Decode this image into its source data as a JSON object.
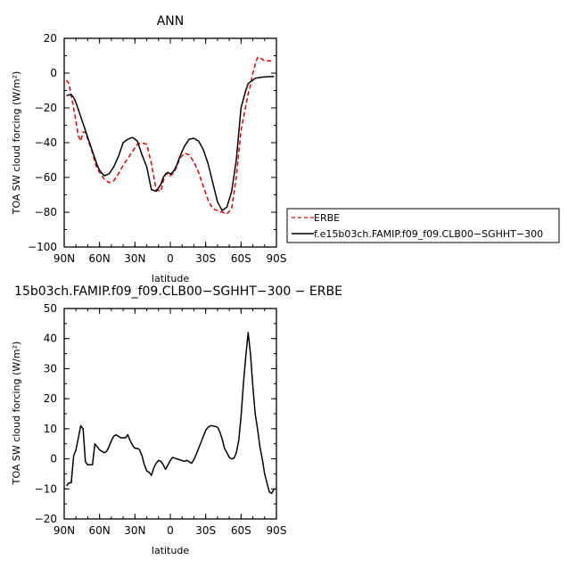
{
  "chart_data": [
    {
      "type": "line",
      "title": "ANN",
      "xlabel": "latitude",
      "ylabel": "TOA SW cloud forcing (W/m²)",
      "xlim": [
        90,
        -90
      ],
      "ylim": [
        -100,
        20
      ],
      "xticks": [
        90,
        60,
        30,
        0,
        -30,
        -60,
        -90
      ],
      "xtick_labels": [
        "90N",
        "60N",
        "30N",
        "0",
        "30S",
        "60S",
        "90S"
      ],
      "yticks": [
        -100,
        -80,
        -60,
        -40,
        -20,
        0,
        20
      ],
      "ytick_labels": [
        "−100",
        "−80",
        "−60",
        "−40",
        "−20",
        "0",
        "20"
      ],
      "legend_position": "right",
      "series": [
        {
          "name": "ERBE",
          "color": "#e00000",
          "dash": "dashed",
          "x": [
            88,
            86,
            84,
            82,
            80,
            78,
            76,
            74,
            72,
            70,
            68,
            66,
            64,
            62,
            60,
            56,
            52,
            48,
            44,
            40,
            36,
            32,
            28,
            24,
            20,
            16,
            12,
            8,
            6,
            4,
            2,
            0,
            -2,
            -4,
            -6,
            -8,
            -12,
            -16,
            -20,
            -24,
            -28,
            -32,
            -36,
            -40,
            -44,
            -48,
            -52,
            -56,
            -60,
            -64,
            -66,
            -68,
            -70,
            -72,
            -74,
            -76,
            -78,
            -80,
            -82,
            -84,
            -86,
            -88
          ],
          "y": [
            -4,
            -6,
            -13,
            -20,
            -28,
            -36,
            -39,
            -34,
            -34,
            -38,
            -42,
            -46,
            -51,
            -55,
            -57,
            -61,
            -63,
            -62,
            -58,
            -53,
            -49,
            -45,
            -41,
            -40,
            -41,
            -52,
            -67,
            -68,
            -62,
            -58,
            -58,
            -59,
            -58,
            -56,
            -53,
            -49,
            -46,
            -47,
            -51,
            -57,
            -65,
            -73,
            -78,
            -79,
            -80,
            -81,
            -78,
            -60,
            -33,
            -19,
            -12,
            -7,
            0,
            5,
            9,
            9,
            8,
            7,
            7,
            7,
            7,
            7
          ]
        },
        {
          "name": "f.e15b03ch.FAMIP.f09_f09.CLB00−SGHHT−300",
          "color": "#000000",
          "dash": "solid",
          "x": [
            88,
            86,
            84,
            82,
            80,
            78,
            76,
            74,
            72,
            70,
            68,
            66,
            64,
            62,
            60,
            56,
            52,
            48,
            44,
            40,
            36,
            32,
            28,
            24,
            20,
            16,
            12,
            8,
            6,
            4,
            2,
            0,
            -2,
            -4,
            -6,
            -8,
            -12,
            -16,
            -20,
            -24,
            -28,
            -32,
            -36,
            -40,
            -44,
            -48,
            -52,
            -56,
            -60,
            -64,
            -66,
            -68,
            -70,
            -72,
            -74,
            -76,
            -78,
            -80,
            -82,
            -84,
            -86,
            -88
          ],
          "y": [
            -13,
            -12.5,
            -12.5,
            -14,
            -17,
            -21,
            -25,
            -29,
            -33,
            -37,
            -41,
            -45,
            -49,
            -53,
            -56,
            -59,
            -58,
            -54,
            -48,
            -40,
            -38,
            -37,
            -39,
            -47,
            -54,
            -67,
            -68,
            -64,
            -60,
            -58,
            -57,
            -58,
            -57,
            -55,
            -52,
            -48,
            -42,
            -38,
            -37.5,
            -39,
            -44,
            -52,
            -63,
            -74,
            -79,
            -77,
            -68,
            -50,
            -20,
            -10,
            -6,
            -5,
            -4,
            -3,
            -2.7,
            -2.5,
            -2.3,
            -2.2,
            -2.1,
            -2,
            -2,
            -2
          ]
        }
      ],
      "legend": [
        {
          "label": "ERBE",
          "color": "#e00000",
          "dash": "dashed"
        },
        {
          "label": "f.e15b03ch.FAMIP.f09_f09.CLB00−SGHHT−300",
          "color": "#000000",
          "dash": "solid"
        }
      ]
    },
    {
      "type": "line",
      "title": "15b03ch.FAMIP.f09_f09.CLB00−SGHHT−300  −  ERBE",
      "xlabel": "latitude",
      "ylabel": "TOA SW cloud forcing (W/m²)",
      "xlim": [
        90,
        -90
      ],
      "ylim": [
        -20,
        50
      ],
      "xticks": [
        90,
        60,
        30,
        0,
        -30,
        -60,
        -90
      ],
      "xtick_labels": [
        "90N",
        "60N",
        "30N",
        "0",
        "30S",
        "60S",
        "90S"
      ],
      "yticks": [
        -20,
        -10,
        0,
        10,
        20,
        30,
        40,
        50
      ],
      "ytick_labels": [
        "−20",
        "−10",
        "0",
        "10",
        "20",
        "30",
        "40",
        "50"
      ],
      "series": [
        {
          "name": "",
          "color": "#000000",
          "dash": "solid",
          "x": [
            88,
            86,
            84,
            82,
            80,
            78,
            76,
            74,
            72,
            70,
            68,
            66,
            64,
            62,
            60,
            58,
            56,
            54,
            52,
            50,
            48,
            46,
            44,
            42,
            40,
            38,
            36,
            34,
            32,
            30,
            28,
            26,
            24,
            22,
            20,
            18,
            16,
            14,
            12,
            10,
            8,
            6,
            4,
            2,
            0,
            -2,
            -4,
            -6,
            -8,
            -10,
            -12,
            -14,
            -16,
            -18,
            -20,
            -22,
            -24,
            -26,
            -28,
            -30,
            -32,
            -34,
            -36,
            -38,
            -40,
            -42,
            -44,
            -46,
            -48,
            -50,
            -52,
            -54,
            -56,
            -58,
            -60,
            -62,
            -64,
            -66,
            -68,
            -70,
            -72,
            -74,
            -76,
            -78,
            -80,
            -82,
            -84,
            -86,
            -88
          ],
          "y": [
            -9,
            -8,
            -8,
            1,
            3,
            7,
            11,
            10,
            -1,
            -2,
            -2,
            -2,
            5,
            4,
            3,
            2.5,
            2,
            2.5,
            4,
            6,
            7.5,
            8,
            7.5,
            7,
            7,
            7,
            8,
            6,
            4.5,
            3.5,
            3.5,
            3,
            1,
            -2,
            -4,
            -4.5,
            -5.5,
            -3,
            -1.5,
            -0.5,
            -0.8,
            -2,
            -3.5,
            -2,
            -0.5,
            0.5,
            0.2,
            -0.1,
            -0.3,
            -0.6,
            -0.8,
            -0.5,
            -1,
            -1.5,
            -0.3,
            1.5,
            3.5,
            5.5,
            7.5,
            9.5,
            10.5,
            11,
            11,
            10.8,
            10.5,
            9,
            6.5,
            3.5,
            2,
            0.5,
            0,
            0.2,
            2,
            6,
            14,
            25,
            34,
            42,
            35,
            24,
            15,
            10,
            4,
            0,
            -5,
            -8,
            -11,
            -11.5,
            -10
          ]
        }
      ]
    }
  ]
}
